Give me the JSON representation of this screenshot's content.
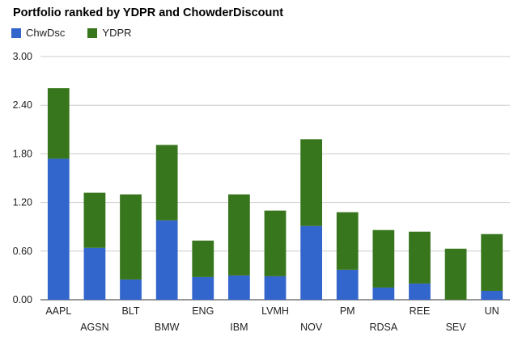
{
  "chart_data": {
    "type": "bar",
    "stacked": true,
    "title": "Portfolio ranked by YDPR and ChowderDiscount",
    "xlabel": "",
    "ylabel": "",
    "ylim": [
      0,
      3.0
    ],
    "yticks": [
      "0.00",
      "0.60",
      "1.20",
      "1.80",
      "2.40",
      "3.00"
    ],
    "grid": true,
    "legend_position": "top-left",
    "categories": [
      "AAPL",
      "AGSN",
      "BLT",
      "BMW",
      "ENG",
      "IBM",
      "LVMH",
      "NOV",
      "PM",
      "RDSA",
      "REE",
      "SEV",
      "UN"
    ],
    "series": [
      {
        "name": "ChwDsc",
        "color": "#3366cc",
        "values": [
          1.74,
          0.64,
          0.25,
          0.98,
          0.28,
          0.3,
          0.29,
          0.91,
          0.37,
          0.15,
          0.2,
          0.0,
          0.11
        ]
      },
      {
        "name": "YDPR",
        "color": "#38761d",
        "values": [
          0.87,
          0.68,
          1.05,
          0.93,
          0.45,
          1.0,
          0.81,
          1.07,
          0.71,
          0.71,
          0.64,
          0.63,
          0.7
        ]
      }
    ]
  }
}
